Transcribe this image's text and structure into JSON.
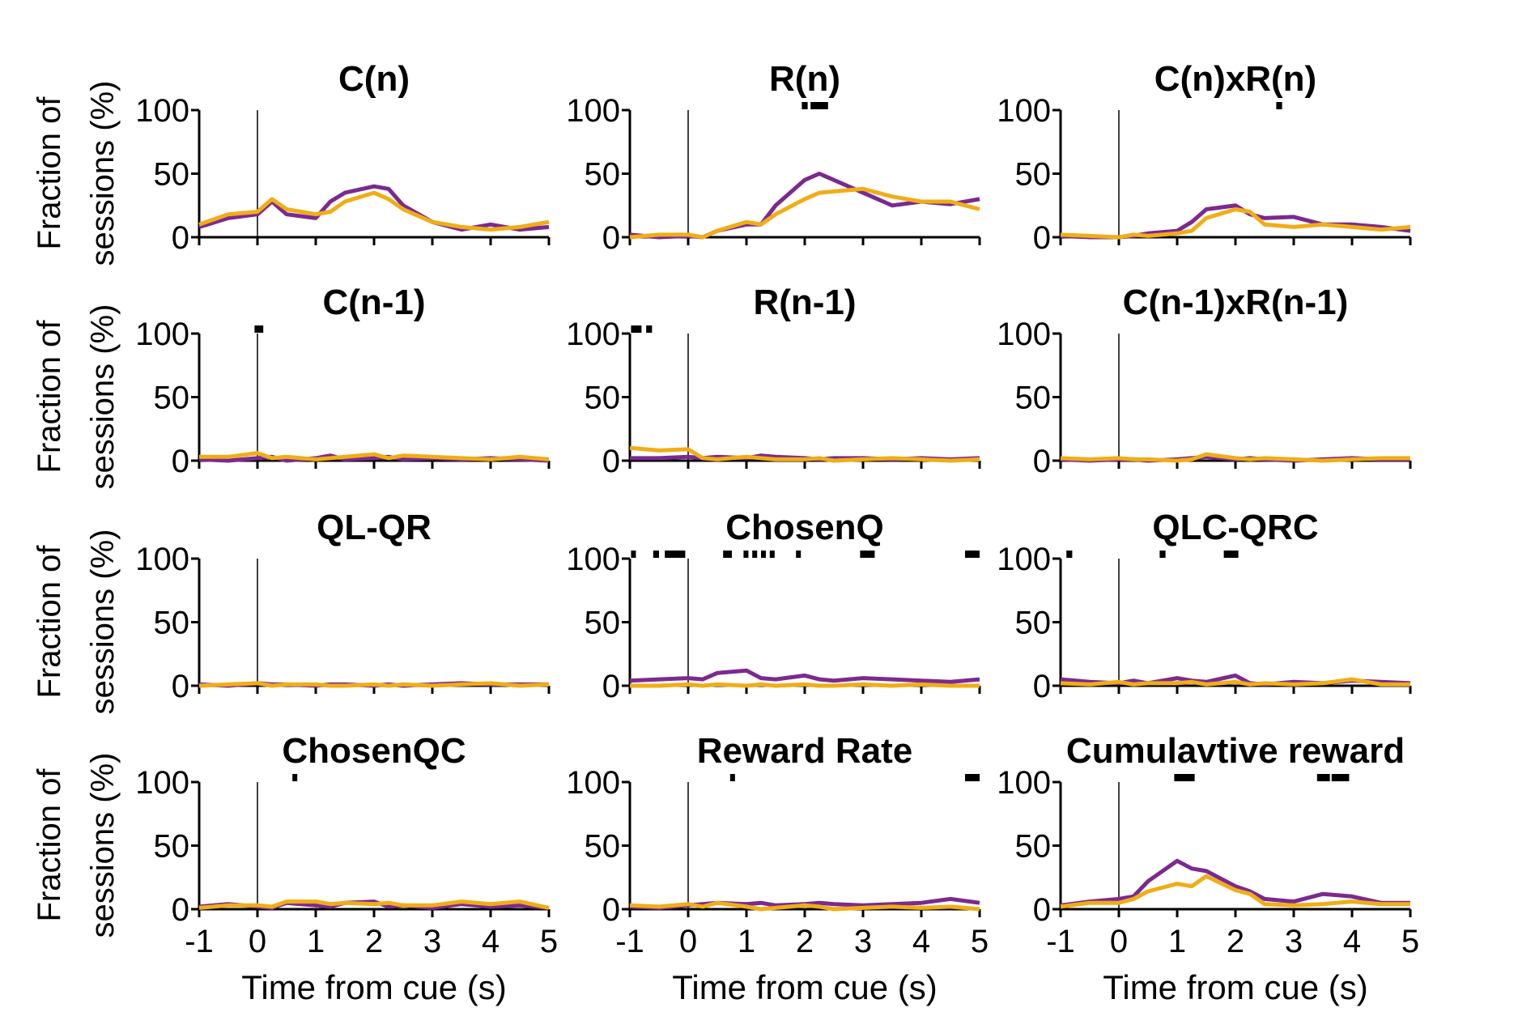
{
  "colors": {
    "series1": "#7b2a8f",
    "series2": "#f0ad17",
    "sig": "#000000",
    "axis": "#000000"
  },
  "axis_labels": {
    "ylabel_line1": "Fraction of",
    "ylabel_line2": "sessions (%)",
    "xlabel": "Time from cue (s)"
  },
  "chart_data": [
    {
      "type": "line",
      "title": "C(n)",
      "xlim": [
        -1,
        5
      ],
      "ylim": [
        0,
        100
      ],
      "xticks": [
        -1,
        0,
        1,
        2,
        3,
        4,
        5
      ],
      "yticks": [
        0,
        50,
        100
      ],
      "x": [
        -1,
        -0.5,
        0,
        0.25,
        0.5,
        1,
        1.25,
        1.5,
        2,
        2.25,
        2.5,
        3,
        3.5,
        4,
        4.5,
        5
      ],
      "series": [
        {
          "values": [
            8,
            15,
            18,
            28,
            18,
            15,
            28,
            35,
            40,
            38,
            25,
            12,
            6,
            10,
            6,
            8
          ]
        },
        {
          "values": [
            10,
            18,
            20,
            30,
            22,
            18,
            20,
            28,
            35,
            30,
            22,
            12,
            8,
            6,
            8,
            12
          ]
        }
      ],
      "sig_marks": []
    },
    {
      "type": "line",
      "title": "R(n)",
      "xlim": [
        -1,
        5
      ],
      "ylim": [
        0,
        100
      ],
      "xticks": [
        -1,
        0,
        1,
        2,
        3,
        4,
        5
      ],
      "yticks": [
        0,
        50,
        100
      ],
      "x": [
        -1,
        -0.5,
        0,
        0.25,
        0.5,
        1,
        1.25,
        1.5,
        2,
        2.25,
        2.5,
        3,
        3.5,
        4,
        4.5,
        5
      ],
      "series": [
        {
          "values": [
            2,
            0,
            1,
            0,
            5,
            10,
            10,
            25,
            45,
            50,
            45,
            35,
            25,
            28,
            26,
            30
          ]
        },
        {
          "values": [
            0,
            2,
            2,
            0,
            5,
            12,
            10,
            18,
            30,
            35,
            36,
            38,
            32,
            28,
            28,
            22
          ]
        }
      ],
      "sig_marks": [
        [
          1.95,
          2.05
        ],
        [
          2.1,
          2.4
        ]
      ]
    },
    {
      "type": "line",
      "title": "C(n)xR(n)",
      "xlim": [
        -1,
        5
      ],
      "ylim": [
        0,
        100
      ],
      "xticks": [
        -1,
        0,
        1,
        2,
        3,
        4,
        5
      ],
      "yticks": [
        0,
        50,
        100
      ],
      "x": [
        -1,
        -0.5,
        0,
        0.25,
        0.5,
        1,
        1.25,
        1.5,
        2,
        2.25,
        2.5,
        3,
        3.5,
        4,
        4.5,
        5
      ],
      "series": [
        {
          "values": [
            1,
            0,
            0,
            1,
            3,
            5,
            12,
            22,
            25,
            18,
            15,
            16,
            10,
            10,
            8,
            5
          ]
        },
        {
          "values": [
            2,
            1,
            0,
            2,
            1,
            3,
            5,
            15,
            22,
            20,
            10,
            8,
            10,
            8,
            6,
            8
          ]
        }
      ],
      "sig_marks": [
        [
          2.7,
          2.8
        ]
      ]
    },
    {
      "type": "line",
      "title": "C(n-1)",
      "xlim": [
        -1,
        5
      ],
      "ylim": [
        0,
        100
      ],
      "xticks": [
        -1,
        0,
        1,
        2,
        3,
        4,
        5
      ],
      "yticks": [
        0,
        50,
        100
      ],
      "x": [
        -1,
        -0.5,
        0,
        0.25,
        0.5,
        1,
        1.25,
        1.5,
        2,
        2.25,
        2.5,
        3,
        3.5,
        4,
        4.5,
        5
      ],
      "series": [
        {
          "values": [
            1,
            0,
            2,
            3,
            0,
            2,
            4,
            1,
            2,
            3,
            1,
            2,
            1,
            2,
            1,
            0
          ]
        },
        {
          "values": [
            3,
            3,
            6,
            2,
            3,
            1,
            2,
            3,
            5,
            2,
            4,
            3,
            2,
            1,
            3,
            1
          ]
        }
      ],
      "sig_marks": [
        [
          -0.05,
          0.1
        ]
      ]
    },
    {
      "type": "line",
      "title": "R(n-1)",
      "xlim": [
        -1,
        5
      ],
      "ylim": [
        0,
        100
      ],
      "xticks": [
        -1,
        0,
        1,
        2,
        3,
        4,
        5
      ],
      "yticks": [
        0,
        50,
        100
      ],
      "x": [
        -1,
        -0.5,
        0,
        0.25,
        0.5,
        1,
        1.25,
        1.5,
        2,
        2.25,
        2.5,
        3,
        3.5,
        4,
        4.5,
        5
      ],
      "series": [
        {
          "values": [
            2,
            2,
            3,
            2,
            3,
            2,
            4,
            3,
            2,
            1,
            2,
            2,
            1,
            2,
            1,
            2
          ]
        },
        {
          "values": [
            10,
            8,
            9,
            2,
            1,
            3,
            2,
            1,
            1,
            2,
            0,
            1,
            2,
            1,
            0,
            1
          ]
        }
      ],
      "sig_marks": [
        [
          -0.98,
          -0.8
        ],
        [
          -0.72,
          -0.62
        ]
      ]
    },
    {
      "type": "line",
      "title": "C(n-1)xR(n-1)",
      "xlim": [
        -1,
        5
      ],
      "ylim": [
        0,
        100
      ],
      "xticks": [
        -1,
        0,
        1,
        2,
        3,
        4,
        5
      ],
      "yticks": [
        0,
        50,
        100
      ],
      "x": [
        -1,
        -0.5,
        0,
        0.25,
        0.5,
        1,
        1.25,
        1.5,
        2,
        2.25,
        2.5,
        3,
        3.5,
        4,
        4.5,
        5
      ],
      "series": [
        {
          "values": [
            1,
            0,
            1,
            1,
            0,
            1,
            2,
            3,
            1,
            2,
            1,
            0,
            1,
            2,
            1,
            1
          ]
        },
        {
          "values": [
            2,
            1,
            2,
            1,
            1,
            0,
            1,
            5,
            2,
            1,
            2,
            1,
            0,
            1,
            2,
            2
          ]
        }
      ],
      "sig_marks": []
    },
    {
      "type": "line",
      "title": "QL-QR",
      "xlim": [
        -1,
        5
      ],
      "ylim": [
        0,
        100
      ],
      "xticks": [
        -1,
        0,
        1,
        2,
        3,
        4,
        5
      ],
      "yticks": [
        0,
        50,
        100
      ],
      "x": [
        -1,
        -0.5,
        0,
        0.25,
        0.5,
        1,
        1.25,
        1.5,
        2,
        2.25,
        2.5,
        3,
        3.5,
        4,
        4.5,
        5
      ],
      "series": [
        {
          "values": [
            1,
            0,
            2,
            1,
            1,
            0,
            1,
            1,
            0,
            1,
            0,
            1,
            2,
            1,
            1,
            1
          ]
        },
        {
          "values": [
            0,
            1,
            2,
            0,
            1,
            1,
            0,
            0,
            1,
            0,
            1,
            0,
            1,
            2,
            0,
            1
          ]
        }
      ],
      "sig_marks": []
    },
    {
      "type": "line",
      "title": "ChosenQ",
      "xlim": [
        -1,
        5
      ],
      "ylim": [
        0,
        100
      ],
      "xticks": [
        -1,
        0,
        1,
        2,
        3,
        4,
        5
      ],
      "yticks": [
        0,
        50,
        100
      ],
      "x": [
        -1,
        -0.5,
        0,
        0.25,
        0.5,
        1,
        1.25,
        1.5,
        2,
        2.25,
        2.5,
        3,
        3.5,
        4,
        4.5,
        5
      ],
      "series": [
        {
          "values": [
            4,
            5,
            6,
            5,
            10,
            12,
            6,
            5,
            8,
            5,
            4,
            6,
            5,
            4,
            3,
            5
          ]
        },
        {
          "values": [
            0,
            0,
            1,
            0,
            1,
            0,
            1,
            0,
            1,
            0,
            0,
            1,
            0,
            1,
            0,
            0
          ]
        }
      ],
      "sig_marks": [
        [
          -0.98,
          -0.9
        ],
        [
          -0.6,
          -0.5
        ],
        [
          -0.4,
          -0.05
        ],
        [
          0.6,
          0.75
        ],
        [
          0.95,
          1.0
        ],
        [
          1.1,
          1.15
        ],
        [
          1.25,
          1.3
        ],
        [
          1.4,
          1.45
        ],
        [
          1.85,
          1.9
        ],
        [
          2.95,
          3.2
        ],
        [
          4.75,
          5.0
        ]
      ]
    },
    {
      "type": "line",
      "title": "QLC-QRC",
      "xlim": [
        -1,
        5
      ],
      "ylim": [
        0,
        100
      ],
      "xticks": [
        -1,
        0,
        1,
        2,
        3,
        4,
        5
      ],
      "yticks": [
        0,
        50,
        100
      ],
      "x": [
        -1,
        -0.5,
        0,
        0.25,
        0.5,
        1,
        1.25,
        1.5,
        2,
        2.25,
        2.5,
        3,
        3.5,
        4,
        4.5,
        5
      ],
      "series": [
        {
          "values": [
            5,
            3,
            2,
            4,
            2,
            6,
            4,
            3,
            8,
            2,
            1,
            3,
            2,
            4,
            3,
            2
          ]
        },
        {
          "values": [
            2,
            1,
            3,
            1,
            2,
            2,
            3,
            1,
            3,
            1,
            2,
            1,
            2,
            5,
            1,
            1
          ]
        }
      ],
      "sig_marks": [
        [
          -0.9,
          -0.8
        ],
        [
          0.7,
          0.8
        ],
        [
          1.8,
          2.05
        ]
      ]
    },
    {
      "type": "line",
      "title": "ChosenQC",
      "xlim": [
        -1,
        5
      ],
      "ylim": [
        0,
        100
      ],
      "xticks": [
        -1,
        0,
        1,
        2,
        3,
        4,
        5
      ],
      "yticks": [
        0,
        50,
        100
      ],
      "x": [
        -1,
        -0.5,
        0,
        0.25,
        0.5,
        1,
        1.25,
        1.5,
        2,
        2.25,
        2.5,
        3,
        3.5,
        4,
        4.5,
        5
      ],
      "series": [
        {
          "values": [
            2,
            4,
            2,
            1,
            5,
            3,
            2,
            5,
            6,
            2,
            3,
            1,
            4,
            2,
            3,
            1
          ]
        },
        {
          "values": [
            1,
            3,
            3,
            2,
            6,
            6,
            4,
            5,
            4,
            5,
            3,
            3,
            6,
            4,
            6,
            1
          ]
        }
      ],
      "sig_marks": [
        [
          0.6,
          0.68
        ]
      ]
    },
    {
      "type": "line",
      "title": "Reward Rate",
      "xlim": [
        -1,
        5
      ],
      "ylim": [
        0,
        100
      ],
      "xticks": [
        -1,
        0,
        1,
        2,
        3,
        4,
        5
      ],
      "yticks": [
        0,
        50,
        100
      ],
      "x": [
        -1,
        -0.5,
        0,
        0.25,
        0.5,
        1,
        1.25,
        1.5,
        2,
        2.25,
        2.5,
        3,
        3.5,
        4,
        4.5,
        5
      ],
      "series": [
        {
          "values": [
            2,
            1,
            3,
            4,
            5,
            4,
            5,
            3,
            4,
            5,
            4,
            3,
            4,
            5,
            8,
            5
          ]
        },
        {
          "values": [
            3,
            2,
            4,
            2,
            5,
            2,
            0,
            1,
            3,
            2,
            0,
            1,
            2,
            1,
            2,
            0
          ]
        }
      ],
      "sig_marks": [
        [
          0.72,
          0.8
        ],
        [
          4.75,
          5.0
        ]
      ]
    },
    {
      "type": "line",
      "title": "Cumulavtive reward",
      "xlim": [
        -1,
        5
      ],
      "ylim": [
        0,
        100
      ],
      "xticks": [
        -1,
        0,
        1,
        2,
        3,
        4,
        5
      ],
      "yticks": [
        0,
        50,
        100
      ],
      "x": [
        -1,
        -0.5,
        0,
        0.25,
        0.5,
        1,
        1.25,
        1.5,
        2,
        2.25,
        2.5,
        3,
        3.5,
        4,
        4.5,
        5
      ],
      "series": [
        {
          "values": [
            3,
            6,
            8,
            10,
            22,
            38,
            32,
            30,
            18,
            14,
            8,
            6,
            12,
            10,
            5,
            5
          ]
        },
        {
          "values": [
            2,
            5,
            5,
            8,
            14,
            20,
            18,
            26,
            15,
            12,
            4,
            3,
            4,
            6,
            4,
            4
          ]
        }
      ],
      "sig_marks": [
        [
          0.95,
          1.3
        ],
        [
          3.4,
          3.62
        ],
        [
          3.65,
          3.95
        ]
      ]
    }
  ]
}
